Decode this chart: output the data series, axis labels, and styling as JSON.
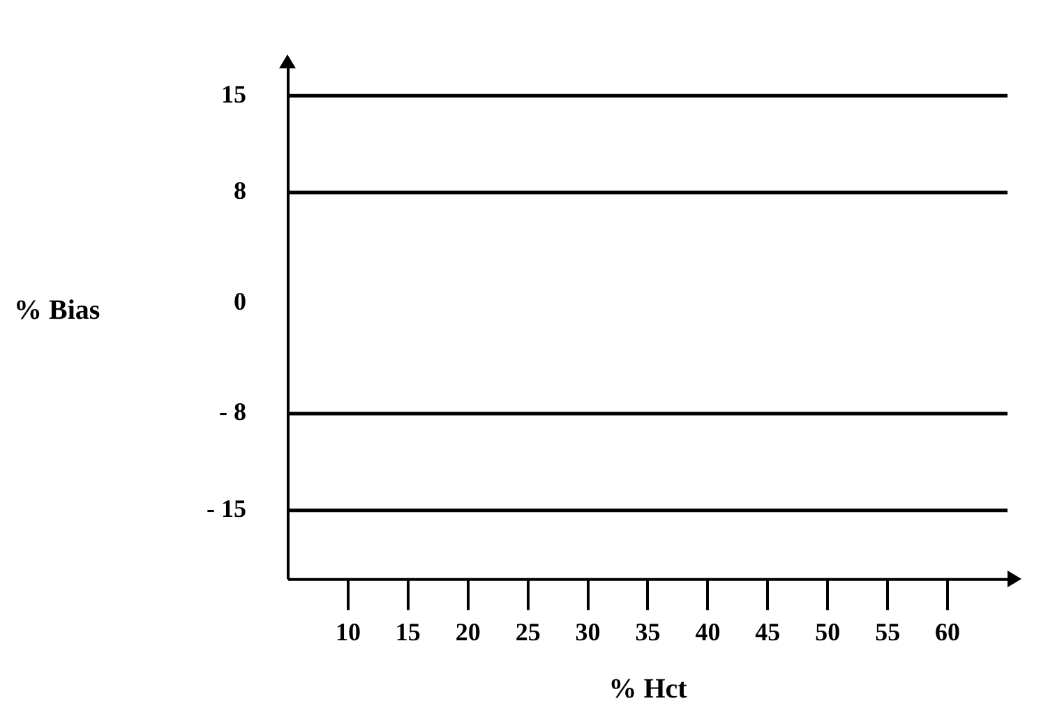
{
  "chart_data": {
    "type": "line",
    "xlabel": "% Hct",
    "ylabel": "% Bias",
    "xlim": [
      5,
      65
    ],
    "xticks": [
      10,
      15,
      20,
      25,
      30,
      35,
      40,
      45,
      50,
      55,
      60
    ],
    "ylim": [
      -20,
      17
    ],
    "yticks": [
      15,
      8,
      0,
      {
        "value": -8,
        "label": "- 8"
      },
      {
        "value": -15,
        "label": "- 15"
      }
    ],
    "ref_lines": [
      {
        "axis": "y",
        "value": 15,
        "color": "#000000"
      },
      {
        "axis": "y",
        "value": 8,
        "color": "#000000"
      },
      {
        "axis": "y",
        "value": -8,
        "color": "#000000"
      },
      {
        "axis": "y",
        "value": -15,
        "color": "#000000"
      }
    ]
  }
}
